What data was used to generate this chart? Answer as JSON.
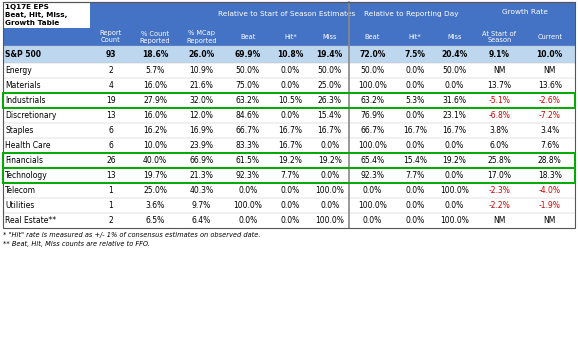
{
  "title_lines": [
    "1Q17E EPS",
    "Beat, Hit, Miss,",
    "Growth Table"
  ],
  "header_bg": "#4472C4",
  "header_fg": "#FFFFFF",
  "sp500_bg": "#BDD7EE",
  "col_labels": [
    "Report\nCount",
    "% Count\nReported",
    "% MCap\nReported",
    "Beat",
    "Hit*",
    "Miss",
    "Beat",
    "Hit*",
    "Miss",
    "At Start of\nSeason",
    "Current"
  ],
  "grp_labels": [
    "Relative to Start of Season Estimates",
    "Relative to Reporting Day",
    "Growth Rate"
  ],
  "rows": [
    {
      "name": "S&P 500",
      "sp500": true,
      "green_box": false,
      "values": [
        "93",
        "18.6%",
        "26.0%",
        "69.9%",
        "10.8%",
        "19.4%",
        "72.0%",
        "7.5%",
        "20.4%",
        "9.1%",
        "10.0%"
      ],
      "colors": [
        "#000000",
        "#000000",
        "#000000",
        "#000000",
        "#000000",
        "#000000",
        "#000000",
        "#000000",
        "#000000",
        "#000000",
        "#000000"
      ]
    },
    {
      "name": "Energy",
      "sp500": false,
      "green_box": false,
      "values": [
        "2",
        "5.7%",
        "10.9%",
        "50.0%",
        "0.0%",
        "50.0%",
        "50.0%",
        "0.0%",
        "50.0%",
        "NM",
        "NM"
      ],
      "colors": [
        "#000000",
        "#000000",
        "#000000",
        "#000000",
        "#000000",
        "#000000",
        "#000000",
        "#000000",
        "#000000",
        "#000000",
        "#000000"
      ]
    },
    {
      "name": "Materials",
      "sp500": false,
      "green_box": false,
      "values": [
        "4",
        "16.0%",
        "21.6%",
        "75.0%",
        "0.0%",
        "25.0%",
        "100.0%",
        "0.0%",
        "0.0%",
        "13.7%",
        "13.6%"
      ],
      "colors": [
        "#000000",
        "#000000",
        "#000000",
        "#000000",
        "#000000",
        "#000000",
        "#000000",
        "#000000",
        "#000000",
        "#000000",
        "#000000"
      ]
    },
    {
      "name": "Industrials",
      "sp500": false,
      "green_box": true,
      "values": [
        "19",
        "27.9%",
        "32.0%",
        "63.2%",
        "10.5%",
        "26.3%",
        "63.2%",
        "5.3%",
        "31.6%",
        "-5.1%",
        "-2.6%"
      ],
      "colors": [
        "#000000",
        "#000000",
        "#000000",
        "#000000",
        "#000000",
        "#000000",
        "#000000",
        "#000000",
        "#000000",
        "#CC0000",
        "#CC0000"
      ]
    },
    {
      "name": "Discretionary",
      "sp500": false,
      "green_box": false,
      "values": [
        "13",
        "16.0%",
        "12.0%",
        "84.6%",
        "0.0%",
        "15.4%",
        "76.9%",
        "0.0%",
        "23.1%",
        "-6.8%",
        "-7.2%"
      ],
      "colors": [
        "#000000",
        "#000000",
        "#000000",
        "#000000",
        "#000000",
        "#000000",
        "#000000",
        "#000000",
        "#000000",
        "#CC0000",
        "#CC0000"
      ]
    },
    {
      "name": "Staples",
      "sp500": false,
      "green_box": false,
      "values": [
        "6",
        "16.2%",
        "16.9%",
        "66.7%",
        "16.7%",
        "16.7%",
        "66.7%",
        "16.7%",
        "16.7%",
        "3.8%",
        "3.4%"
      ],
      "colors": [
        "#000000",
        "#000000",
        "#000000",
        "#000000",
        "#000000",
        "#000000",
        "#000000",
        "#000000",
        "#000000",
        "#000000",
        "#000000"
      ]
    },
    {
      "name": "Health Care",
      "sp500": false,
      "green_box": false,
      "values": [
        "6",
        "10.0%",
        "23.9%",
        "83.3%",
        "16.7%",
        "0.0%",
        "100.0%",
        "0.0%",
        "0.0%",
        "6.0%",
        "7.6%"
      ],
      "colors": [
        "#000000",
        "#000000",
        "#000000",
        "#000000",
        "#000000",
        "#000000",
        "#000000",
        "#000000",
        "#000000",
        "#000000",
        "#000000"
      ]
    },
    {
      "name": "Financials",
      "sp500": false,
      "green_box": true,
      "values": [
        "26",
        "40.0%",
        "66.9%",
        "61.5%",
        "19.2%",
        "19.2%",
        "65.4%",
        "15.4%",
        "19.2%",
        "25.8%",
        "28.8%"
      ],
      "colors": [
        "#000000",
        "#000000",
        "#000000",
        "#000000",
        "#000000",
        "#000000",
        "#000000",
        "#000000",
        "#000000",
        "#000000",
        "#000000"
      ]
    },
    {
      "name": "Technology",
      "sp500": false,
      "green_box": true,
      "values": [
        "13",
        "19.7%",
        "21.3%",
        "92.3%",
        "7.7%",
        "0.0%",
        "92.3%",
        "7.7%",
        "0.0%",
        "17.0%",
        "18.3%"
      ],
      "colors": [
        "#000000",
        "#000000",
        "#000000",
        "#000000",
        "#000000",
        "#000000",
        "#000000",
        "#000000",
        "#000000",
        "#000000",
        "#000000"
      ]
    },
    {
      "name": "Telecom",
      "sp500": false,
      "green_box": false,
      "values": [
        "1",
        "25.0%",
        "40.3%",
        "0.0%",
        "0.0%",
        "100.0%",
        "0.0%",
        "0.0%",
        "100.0%",
        "-2.3%",
        "-4.0%"
      ],
      "colors": [
        "#000000",
        "#000000",
        "#000000",
        "#000000",
        "#000000",
        "#000000",
        "#000000",
        "#000000",
        "#000000",
        "#CC0000",
        "#CC0000"
      ]
    },
    {
      "name": "Utilities",
      "sp500": false,
      "green_box": false,
      "values": [
        "1",
        "3.6%",
        "9.7%",
        "100.0%",
        "0.0%",
        "0.0%",
        "100.0%",
        "0.0%",
        "0.0%",
        "-2.2%",
        "-1.9%"
      ],
      "colors": [
        "#000000",
        "#000000",
        "#000000",
        "#000000",
        "#000000",
        "#000000",
        "#000000",
        "#000000",
        "#000000",
        "#CC0000",
        "#CC0000"
      ]
    },
    {
      "name": "Real Estate**",
      "sp500": false,
      "green_box": false,
      "values": [
        "2",
        "6.5%",
        "6.4%",
        "0.0%",
        "0.0%",
        "100.0%",
        "0.0%",
        "0.0%",
        "100.0%",
        "NM",
        "NM"
      ],
      "colors": [
        "#000000",
        "#000000",
        "#000000",
        "#000000",
        "#000000",
        "#000000",
        "#000000",
        "#000000",
        "#000000",
        "#000000",
        "#000000"
      ]
    }
  ],
  "footnotes": [
    "* \"Hit\" rate is measured as +/- 1% of consensus estimates on observed date.",
    "** Beat, Hit, Miss counts are relative to FFO."
  ]
}
